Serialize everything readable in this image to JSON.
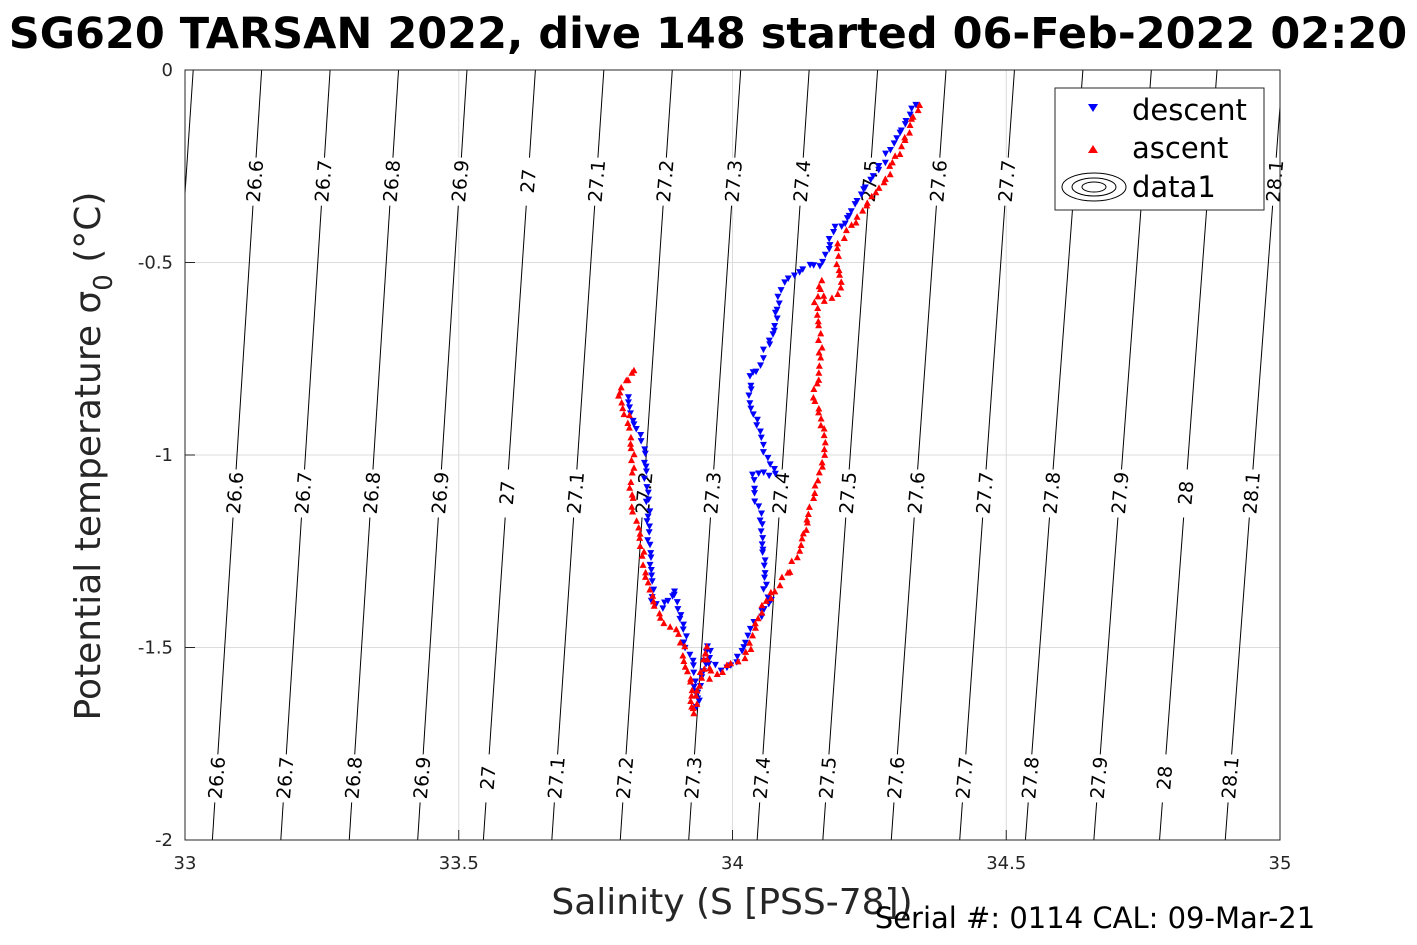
{
  "title": "SG620 TARSAN 2022, dive 148 started 06-Feb-2022 02:20",
  "footer": "Serial #: 0114  CAL: 09-Mar-21",
  "colors": {
    "descent": "#0000ff",
    "ascent": "#ff0000",
    "grid": "#dcdcdc",
    "axis": "#262626",
    "contour": "#000000"
  },
  "chart_data": {
    "type": "scatter",
    "xlabel": "Salinity (S [PSS-78])",
    "ylabel": "Potential temperature σ",
    "ylabel_sub": "0",
    "ylabel_unit": " (°C)",
    "xlim": [
      33,
      35
    ],
    "ylim": [
      -2,
      0
    ],
    "grid": true,
    "xticks": [
      33,
      33.5,
      34,
      34.5,
      35
    ],
    "xtick_labels": [
      "33",
      "33.5",
      "34",
      "34.5",
      "35"
    ],
    "yticks": [
      0,
      -0.5,
      -1,
      -1.5,
      -2
    ],
    "ytick_labels": [
      "0",
      "-0.5",
      "-1",
      "-1.5",
      "-2"
    ],
    "legend": {
      "placement": "top-right",
      "entries": [
        "descent",
        "ascent",
        "data1"
      ]
    },
    "contours": [
      {
        "label": "26.6",
        "bottom": [
          33.05,
          -2.0
        ],
        "top": [
          33.14,
          0.0
        ]
      },
      {
        "label": "26.7",
        "bottom": [
          33.175,
          -2.0
        ],
        "top": [
          33.265,
          0.0
        ]
      },
      {
        "label": "26.8",
        "bottom": [
          33.3,
          -2.0
        ],
        "top": [
          33.39,
          0.0
        ]
      },
      {
        "label": "26.9",
        "bottom": [
          33.425,
          -2.0
        ],
        "top": [
          33.515,
          0.0
        ]
      },
      {
        "label": "27",
        "bottom": [
          33.545,
          -2.0
        ],
        "top": [
          33.64,
          0.0
        ]
      },
      {
        "label": "27.1",
        "bottom": [
          33.67,
          -2.0
        ],
        "top": [
          33.765,
          0.0
        ]
      },
      {
        "label": "27.2",
        "bottom": [
          33.795,
          -2.0
        ],
        "top": [
          33.89,
          0.0
        ]
      },
      {
        "label": "27.3",
        "bottom": [
          33.92,
          -2.0
        ],
        "top": [
          34.015,
          0.0
        ]
      },
      {
        "label": "27.4",
        "bottom": [
          34.045,
          -2.0
        ],
        "top": [
          34.14,
          0.0
        ]
      },
      {
        "label": "27.5",
        "bottom": [
          34.165,
          -2.0
        ],
        "top": [
          34.265,
          0.0
        ]
      },
      {
        "label": "27.6",
        "bottom": [
          34.29,
          -2.0
        ],
        "top": [
          34.39,
          0.0
        ]
      },
      {
        "label": "27.7",
        "bottom": [
          34.415,
          -2.0
        ],
        "top": [
          34.515,
          0.0
        ]
      },
      {
        "label": "27.8",
        "bottom": [
          34.535,
          -2.0
        ],
        "top": [
          34.64,
          0.0
        ]
      },
      {
        "label": "27.9",
        "bottom": [
          34.66,
          -2.0
        ],
        "top": [
          34.765,
          0.0
        ]
      },
      {
        "label": "28",
        "bottom": [
          34.78,
          -2.0
        ],
        "top": [
          34.885,
          0.0
        ]
      },
      {
        "label": "28.1",
        "bottom": [
          34.9,
          -2.0
        ],
        "top": [
          35.005,
          0.0
        ]
      }
    ],
    "contour_label_rows": [
      {
        "y": -0.29,
        "labels": [
          "26.6",
          "26.7",
          "26.8",
          "26.9",
          "27",
          "27.1",
          "27.2",
          "27.3",
          "27.4",
          "27.5",
          "27.6",
          "27.7",
          "28.1"
        ]
      },
      {
        "y": -1.1,
        "labels": [
          "26.6",
          "26.7",
          "26.8",
          "26.9",
          "27",
          "27.1",
          "27.2",
          "27.3",
          "27.4",
          "27.5",
          "27.6",
          "27.7",
          "27.8",
          "27.9",
          "28",
          "28.1"
        ]
      },
      {
        "y": -1.84,
        "labels": [
          "26.6",
          "26.7",
          "26.8",
          "26.9",
          "27",
          "27.1",
          "27.2",
          "27.3",
          "27.4",
          "27.5",
          "27.6",
          "27.7",
          "27.8",
          "27.9",
          "28",
          "28.1"
        ]
      }
    ],
    "series": [
      {
        "name": "descent",
        "marker": "triangle-down",
        "path": [
          [
            34.335,
            -0.09
          ],
          [
            34.3,
            -0.18
          ],
          [
            34.27,
            -0.25
          ],
          [
            34.245,
            -0.3
          ],
          [
            34.225,
            -0.35
          ],
          [
            34.205,
            -0.4
          ],
          [
            34.19,
            -0.41
          ],
          [
            34.18,
            -0.44
          ],
          [
            34.17,
            -0.48
          ],
          [
            34.16,
            -0.51
          ],
          [
            34.14,
            -0.51
          ],
          [
            34.12,
            -0.52
          ],
          [
            34.1,
            -0.54
          ],
          [
            34.085,
            -0.59
          ],
          [
            34.08,
            -0.66
          ],
          [
            34.07,
            -0.7
          ],
          [
            34.06,
            -0.73
          ],
          [
            34.045,
            -0.78
          ],
          [
            34.035,
            -0.8
          ],
          [
            34.03,
            -0.85
          ],
          [
            34.06,
            -0.99
          ],
          [
            34.08,
            -1.05
          ],
          [
            34.04,
            -1.05
          ],
          [
            34.04,
            -1.1
          ],
          [
            34.05,
            -1.15
          ],
          [
            34.06,
            -1.35
          ],
          [
            34.07,
            -1.38
          ],
          [
            34.06,
            -1.4
          ],
          [
            34.05,
            -1.42
          ],
          [
            34.035,
            -1.45
          ],
          [
            34.02,
            -1.5
          ],
          [
            34.0,
            -1.55
          ],
          [
            33.98,
            -1.56
          ],
          [
            33.96,
            -1.54
          ],
          [
            33.955,
            -1.5
          ],
          [
            33.945,
            -1.58
          ],
          [
            33.94,
            -1.6
          ],
          [
            33.935,
            -1.65
          ],
          [
            33.93,
            -1.55
          ],
          [
            33.915,
            -1.5
          ],
          [
            33.91,
            -1.44
          ],
          [
            33.9,
            -1.4
          ],
          [
            33.895,
            -1.35
          ],
          [
            33.87,
            -1.4
          ],
          [
            33.855,
            -1.38
          ],
          [
            33.84,
            -1.0
          ],
          [
            33.835,
            -0.95
          ],
          [
            33.82,
            -0.92
          ],
          [
            33.815,
            -0.88
          ],
          [
            33.81,
            -0.85
          ]
        ]
      },
      {
        "name": "ascent",
        "marker": "triangle-up",
        "path": [
          [
            34.34,
            -0.09
          ],
          [
            34.31,
            -0.2
          ],
          [
            34.28,
            -0.28
          ],
          [
            34.255,
            -0.33
          ],
          [
            34.235,
            -0.37
          ],
          [
            34.21,
            -0.42
          ],
          [
            34.195,
            -0.45
          ],
          [
            34.19,
            -0.5
          ],
          [
            34.2,
            -0.55
          ],
          [
            34.19,
            -0.58
          ],
          [
            34.17,
            -0.6
          ],
          [
            34.16,
            -0.55
          ],
          [
            34.15,
            -0.6
          ],
          [
            34.16,
            -0.65
          ],
          [
            34.16,
            -0.72
          ],
          [
            34.155,
            -0.8
          ],
          [
            34.15,
            -0.85
          ],
          [
            34.17,
            -0.95
          ],
          [
            34.17,
            -1.0
          ],
          [
            34.16,
            -1.05
          ],
          [
            34.15,
            -1.1
          ],
          [
            34.14,
            -1.15
          ],
          [
            34.12,
            -1.25
          ],
          [
            34.11,
            -1.28
          ],
          [
            34.105,
            -1.3
          ],
          [
            34.09,
            -1.32
          ],
          [
            34.08,
            -1.35
          ],
          [
            34.06,
            -1.38
          ],
          [
            34.05,
            -1.42
          ],
          [
            34.04,
            -1.45
          ],
          [
            34.03,
            -1.5
          ],
          [
            34.02,
            -1.53
          ],
          [
            34.0,
            -1.54
          ],
          [
            33.98,
            -1.56
          ],
          [
            33.96,
            -1.58
          ],
          [
            33.955,
            -1.55
          ],
          [
            33.95,
            -1.5
          ],
          [
            33.945,
            -1.55
          ],
          [
            33.94,
            -1.6
          ],
          [
            33.935,
            -1.63
          ],
          [
            33.93,
            -1.67
          ],
          [
            33.925,
            -1.62
          ],
          [
            33.92,
            -1.58
          ],
          [
            33.91,
            -1.5
          ],
          [
            33.9,
            -1.45
          ],
          [
            33.885,
            -1.45
          ],
          [
            33.87,
            -1.42
          ],
          [
            33.855,
            -1.38
          ],
          [
            33.84,
            -1.3
          ],
          [
            33.835,
            -1.25
          ],
          [
            33.83,
            -1.2
          ],
          [
            33.82,
            -1.15
          ],
          [
            33.815,
            -1.1
          ],
          [
            33.81,
            -1.08
          ],
          [
            33.815,
            -1.05
          ],
          [
            33.82,
            -1.0
          ],
          [
            33.815,
            -0.95
          ],
          [
            33.81,
            -0.9
          ],
          [
            33.8,
            -0.88
          ],
          [
            33.79,
            -0.85
          ],
          [
            33.8,
            -0.82
          ],
          [
            33.81,
            -0.8
          ],
          [
            33.815,
            -0.79
          ],
          [
            33.82,
            -0.78
          ]
        ]
      }
    ]
  }
}
